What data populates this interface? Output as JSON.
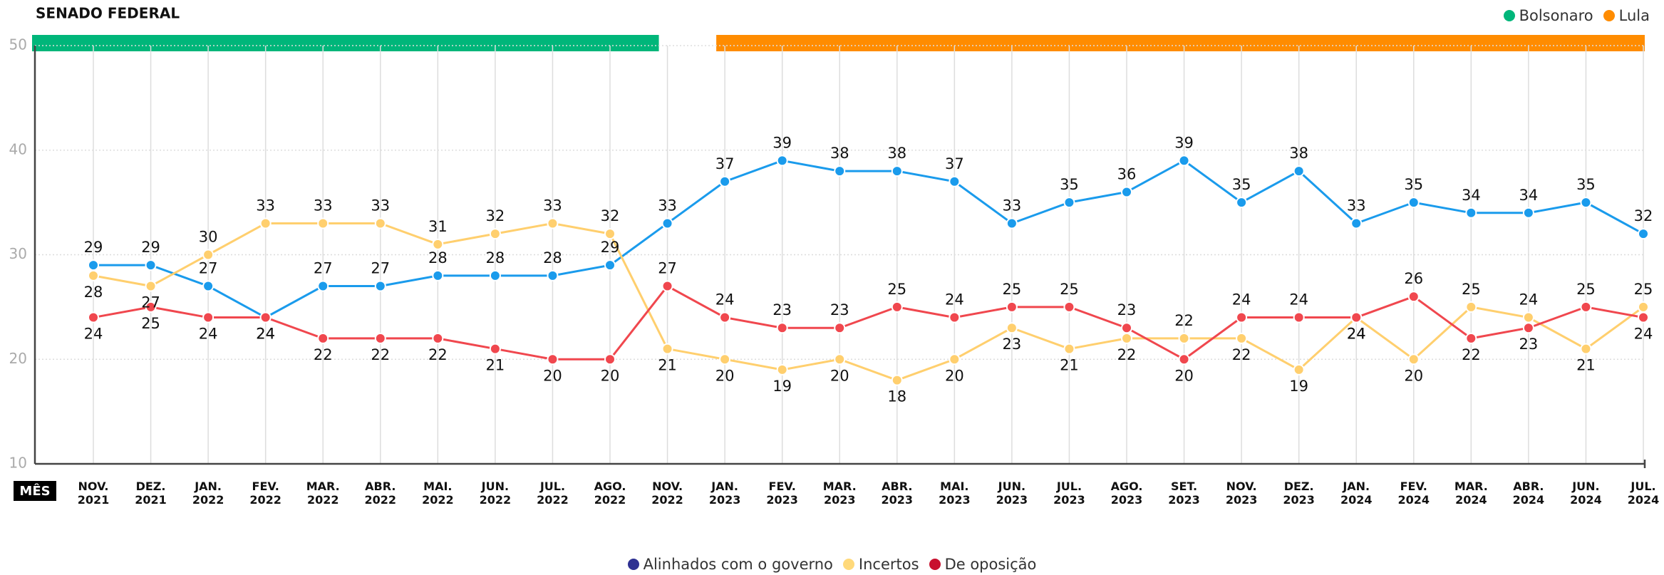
{
  "chart_data": {
    "type": "line",
    "title": "SENADO FEDERAL",
    "x_label": "MÊS",
    "periods": [
      {
        "name": "Bolsonaro",
        "color": "#00b67a"
      },
      {
        "name": "Lula",
        "color": "#ff8c00"
      }
    ],
    "categories": [
      "NOV. 2021",
      "DEZ. 2021",
      "JAN. 2022",
      "FEV. 2022",
      "MAR. 2022",
      "ABR. 2022",
      "MAI. 2022",
      "JUN. 2022",
      "JUL. 2022",
      "AGO. 2022",
      "NOV. 2022",
      "JAN. 2023",
      "FEV. 2023",
      "MAR. 2023",
      "ABR. 2023",
      "MAI. 2023",
      "JUN. 2023",
      "JUL. 2023",
      "AGO. 2023",
      "SET. 2023",
      "NOV. 2023",
      "DEZ. 2023",
      "JAN. 2024",
      "FEV. 2024",
      "MAR. 2024",
      "ABR. 2024",
      "JUN. 2024",
      "JUL. 2024"
    ],
    "series": [
      {
        "name": "Alinhados com o governo",
        "color": "#1a9bec",
        "legend_color": "#2e3192",
        "values": [
          29,
          29,
          27,
          24,
          27,
          27,
          28,
          28,
          28,
          29,
          33,
          37,
          39,
          38,
          38,
          37,
          33,
          35,
          36,
          39,
          35,
          38,
          33,
          35,
          34,
          34,
          35,
          32
        ]
      },
      {
        "name": "Incertos",
        "color": "#ffcf6e",
        "legend_color": "#ffd97a",
        "values": [
          28,
          27,
          30,
          33,
          33,
          33,
          31,
          32,
          33,
          32,
          21,
          20,
          19,
          20,
          18,
          20,
          23,
          21,
          22,
          22,
          22,
          19,
          24,
          20,
          25,
          24,
          21,
          25
        ]
      },
      {
        "name": "De oposição",
        "color": "#f0474e",
        "legend_color": "#c8102e",
        "values": [
          24,
          25,
          24,
          24,
          22,
          22,
          22,
          21,
          20,
          20,
          27,
          24,
          23,
          23,
          25,
          24,
          25,
          25,
          23,
          20,
          24,
          24,
          24,
          26,
          22,
          23,
          25,
          24
        ]
      }
    ],
    "ylim": [
      10,
      50
    ],
    "yticks": [
      10,
      20,
      30,
      40,
      50
    ],
    "grid": true
  }
}
